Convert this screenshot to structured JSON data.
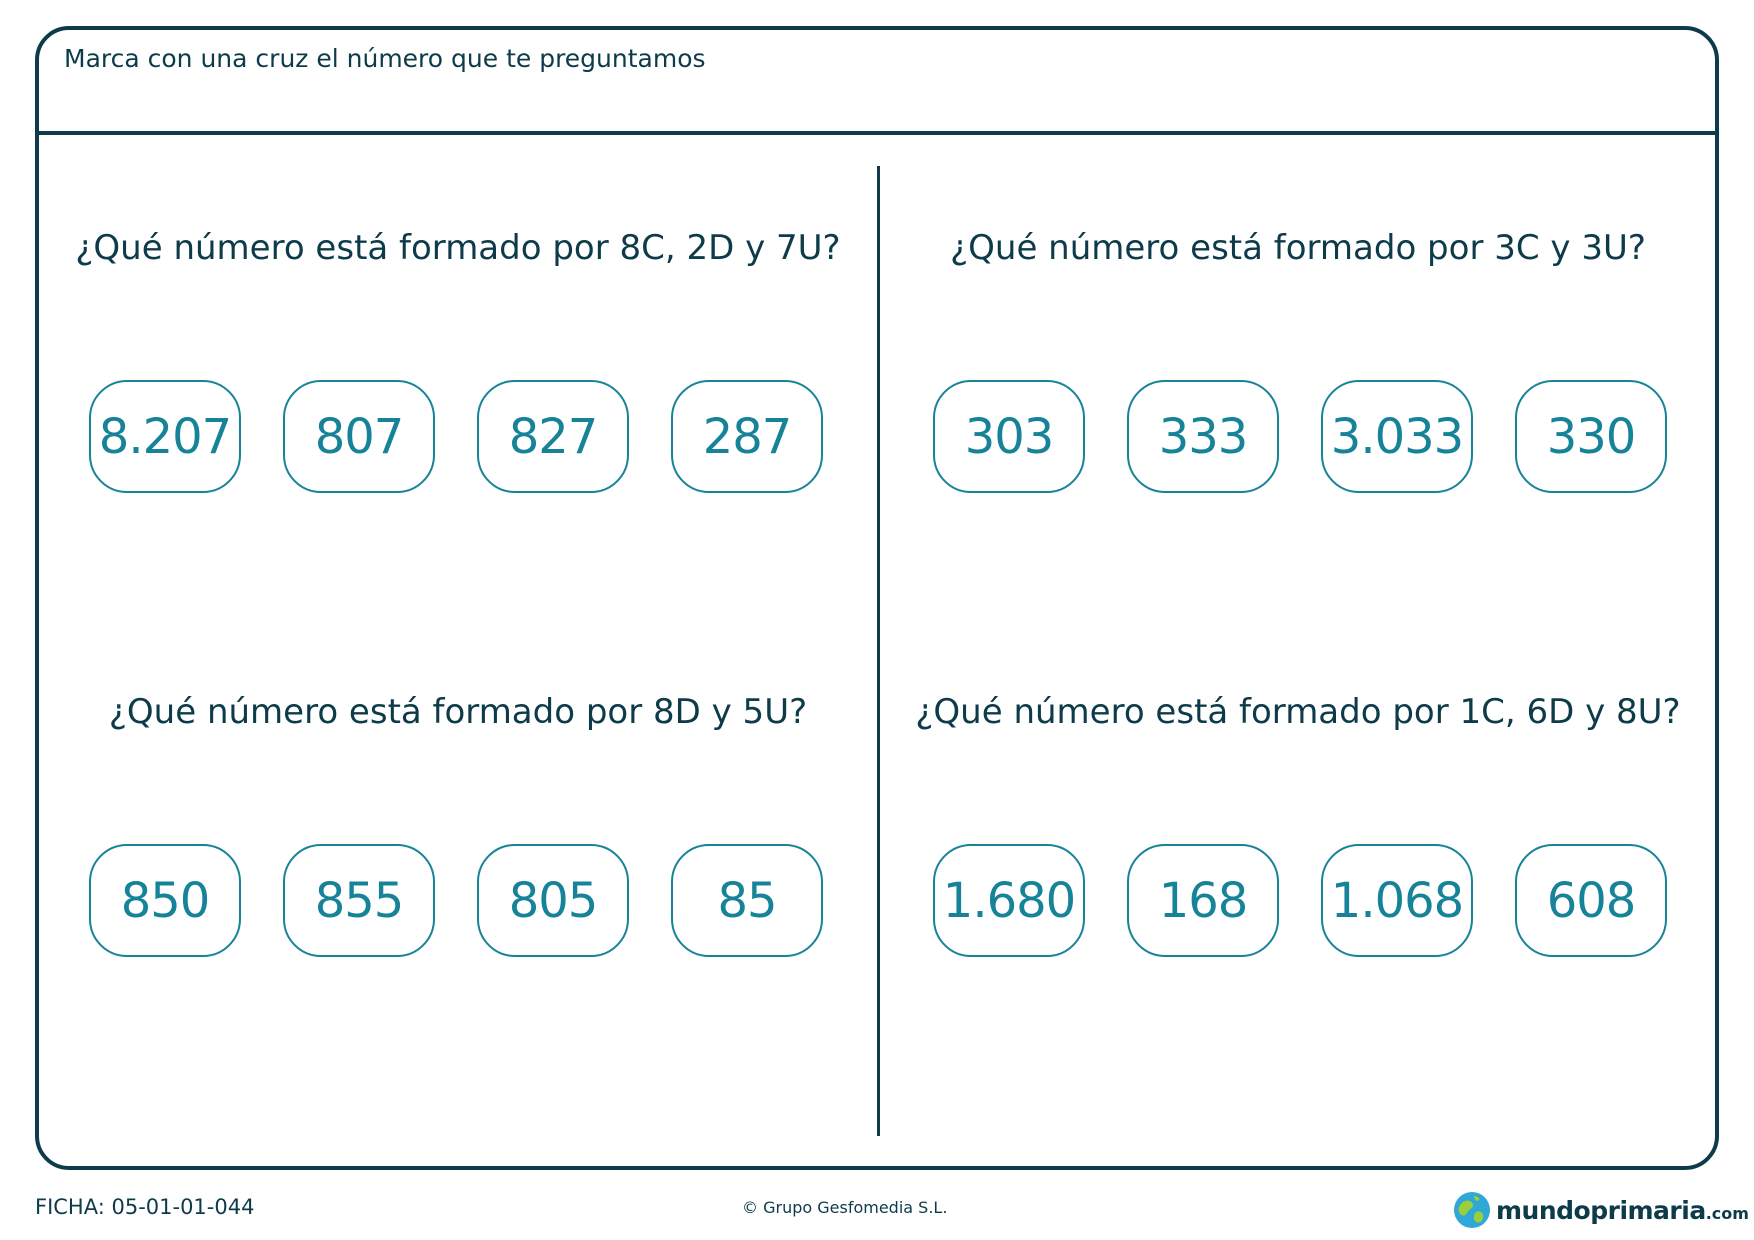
{
  "instruction": "Marca con una cruz el número que te preguntamos",
  "questions": [
    {
      "text": "¿Qué número está formado por 8C, 2D y 7U?",
      "options": [
        "8.207",
        "807",
        "827",
        "287"
      ]
    },
    {
      "text": "¿Qué número está formado por 3C y 3U?",
      "options": [
        "303",
        "333",
        "3.033",
        "330"
      ]
    },
    {
      "text": "¿Qué número está formado por 8D y 5U?",
      "options": [
        "850",
        "855",
        "805",
        "85"
      ]
    },
    {
      "text": "¿Qué número está formado por 1C, 6D y 8U?",
      "options": [
        "1.680",
        "168",
        "1.068",
        "608"
      ]
    }
  ],
  "footer": {
    "code": "FICHA: 05-01-01-044",
    "copyright": "© Grupo Gesfomedia S.L.",
    "brand_name": "mundoprimaria",
    "brand_tld": ".com"
  },
  "colors": {
    "primary": "#0d3b4a",
    "accent": "#178399"
  },
  "icons": {
    "brand_logo": "globe-icon"
  }
}
